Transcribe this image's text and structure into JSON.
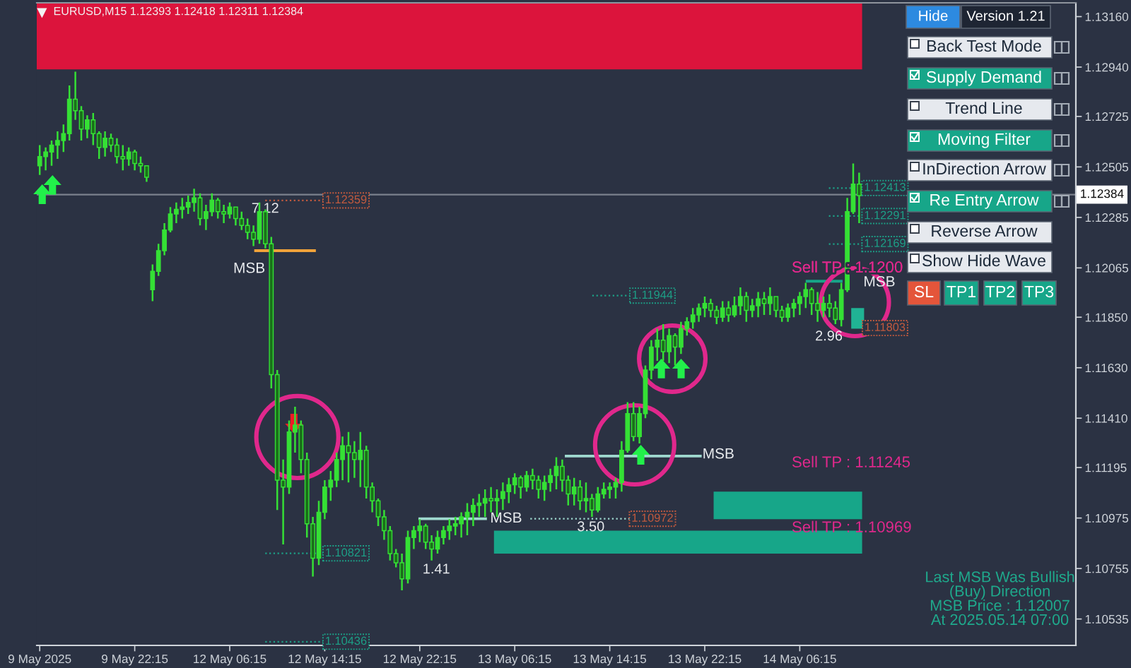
{
  "chart_data": {
    "type": "candlestick",
    "title": "EURUSD,M15 1.12393 1.12418 1.12311 1.12384",
    "categories": [
      "9 May 2025",
      null,
      null,
      null,
      null,
      null,
      null,
      null,
      null,
      null,
      null,
      null,
      null,
      null,
      null,
      null,
      "9 May 22:15",
      null,
      null,
      null,
      null,
      null,
      null,
      null,
      null,
      null,
      null,
      null,
      null,
      null,
      null,
      null,
      "12 May 06:15",
      null,
      null,
      null,
      null,
      null,
      null,
      null,
      null,
      null,
      null,
      null,
      null,
      null,
      null,
      null,
      "12 May 14:15",
      null,
      null,
      null,
      null,
      null,
      null,
      null,
      null,
      null,
      null,
      null,
      null,
      null,
      null,
      null,
      "12 May 22:15",
      null,
      null,
      null,
      null,
      null,
      null,
      null,
      null,
      null,
      null,
      null,
      null,
      null,
      null,
      null,
      "13 May 06:15",
      null,
      null,
      null,
      null,
      null,
      null,
      null,
      null,
      null,
      null,
      null,
      null,
      null,
      null,
      null,
      "13 May 14:15",
      null,
      null,
      null,
      null,
      null,
      null,
      null,
      null,
      null,
      null,
      null,
      null,
      null,
      null,
      null,
      "13 May 22:15",
      null,
      null,
      null,
      null,
      null,
      null,
      null,
      null,
      null,
      null,
      null,
      null,
      null,
      null,
      null,
      "14 May 06:15",
      null,
      null,
      null,
      null,
      null,
      null,
      null,
      null,
      null,
      null,
      null,
      null,
      null,
      null,
      null,
      null,
      null,
      null,
      null,
      null,
      null,
      null,
      null,
      null,
      null,
      null,
      null,
      null,
      null,
      null,
      null,
      null,
      null,
      null,
      null,
      null,
      null,
      null,
      null,
      null,
      null,
      null,
      null,
      null,
      null,
      null
    ],
    "color": "#35e035",
    "ohlc": [
      [
        1.1251,
        1.126,
        1.1247,
        1.1255
      ],
      [
        1.1255,
        1.1259,
        1.1249,
        1.1257
      ],
      [
        1.1257,
        1.1262,
        1.1251,
        1.126
      ],
      [
        1.126,
        1.1266,
        1.1254,
        1.1262
      ],
      [
        1.1262,
        1.1269,
        1.1257,
        1.1265
      ],
      [
        1.1265,
        1.1286,
        1.1262,
        1.128
      ],
      [
        1.128,
        1.1292,
        1.1271,
        1.1275
      ],
      [
        1.1275,
        1.1277,
        1.1262,
        1.1267
      ],
      [
        1.1267,
        1.1273,
        1.1263,
        1.1271
      ],
      [
        1.1271,
        1.1274,
        1.126,
        1.1265
      ],
      [
        1.1265,
        1.1266,
        1.1254,
        1.1259
      ],
      [
        1.1259,
        1.1266,
        1.1255,
        1.1263
      ],
      [
        1.1263,
        1.1265,
        1.1257,
        1.126
      ],
      [
        1.126,
        1.1263,
        1.1252,
        1.1255
      ],
      [
        1.1255,
        1.126,
        1.1249,
        1.1254
      ],
      [
        1.1254,
        1.1259,
        1.1251,
        1.1257
      ],
      [
        1.1257,
        1.1258,
        1.1249,
        1.1252
      ],
      [
        1.1252,
        1.1255,
        1.1248,
        1.1251
      ],
      [
        1.1251,
        1.1251,
        1.1244,
        1.1246
      ],
      [
        1.1197,
        1.1208,
        1.1192,
        1.1205
      ],
      [
        1.1205,
        1.1217,
        1.1203,
        1.1214
      ],
      [
        1.1214,
        1.1226,
        1.1212,
        1.1223
      ],
      [
        1.1223,
        1.1233,
        1.1222,
        1.123
      ],
      [
        1.123,
        1.1235,
        1.1226,
        1.1232
      ],
      [
        1.1232,
        1.1237,
        1.1228,
        1.1233
      ],
      [
        1.1233,
        1.1238,
        1.123,
        1.1235
      ],
      [
        1.1235,
        1.1241,
        1.1231,
        1.1237
      ],
      [
        1.1237,
        1.1239,
        1.1225,
        1.1228
      ],
      [
        1.1228,
        1.1234,
        1.1223,
        1.1231
      ],
      [
        1.1231,
        1.1239,
        1.1229,
        1.1236
      ],
      [
        1.1236,
        1.1237,
        1.1228,
        1.1231
      ],
      [
        1.1231,
        1.1234,
        1.1226,
        1.123
      ],
      [
        1.123,
        1.1235,
        1.1228,
        1.1233
      ],
      [
        1.1233,
        1.1233,
        1.1225,
        1.1228
      ],
      [
        1.1228,
        1.1231,
        1.1223,
        1.1225
      ],
      [
        1.1225,
        1.1228,
        1.1219,
        1.1222
      ],
      [
        1.1222,
        1.1225,
        1.1216,
        1.1219
      ],
      [
        1.1219,
        1.1235,
        1.1217,
        1.1231
      ],
      [
        1.1231,
        1.1232,
        1.1215,
        1.1217
      ],
      [
        1.1217,
        1.122,
        1.1154,
        1.116
      ],
      [
        1.116,
        1.1162,
        1.1101,
        1.1114
      ],
      [
        1.1114,
        1.1123,
        1.1086,
        1.1111
      ],
      [
        1.1111,
        1.114,
        1.1108,
        1.1135
      ],
      [
        1.1135,
        1.1146,
        1.1126,
        1.1138
      ],
      [
        1.1138,
        1.114,
        1.1117,
        1.1123
      ],
      [
        1.1123,
        1.1126,
        1.1089,
        1.1095
      ],
      [
        1.1095,
        1.1098,
        1.1072,
        1.108
      ],
      [
        1.108,
        1.1105,
        1.1077,
        1.11
      ],
      [
        1.11,
        1.1114,
        1.1097,
        1.1111
      ],
      [
        1.1111,
        1.1118,
        1.1105,
        1.1114
      ],
      [
        1.1114,
        1.1126,
        1.1111,
        1.1123
      ],
      [
        1.1123,
        1.1133,
        1.1114,
        1.1129
      ],
      [
        1.1129,
        1.1135,
        1.1113,
        1.1126
      ],
      [
        1.1126,
        1.1131,
        1.1115,
        1.1123
      ],
      [
        1.1123,
        1.1135,
        1.1111,
        1.1127
      ],
      [
        1.1127,
        1.1129,
        1.1106,
        1.1111
      ],
      [
        1.1111,
        1.1113,
        1.11,
        1.1105
      ],
      [
        1.1105,
        1.1106,
        1.1094,
        1.1098
      ],
      [
        1.1098,
        1.1101,
        1.1088,
        1.1092
      ],
      [
        1.1092,
        1.1094,
        1.1079,
        1.1082
      ],
      [
        1.1082,
        1.1084,
        1.1076,
        1.1078
      ],
      [
        1.1078,
        1.1082,
        1.1066,
        1.1071
      ],
      [
        1.1071,
        1.1092,
        1.1069,
        1.1089
      ],
      [
        1.1089,
        1.1094,
        1.1084,
        1.1092
      ],
      [
        1.1092,
        1.1097,
        1.1087,
        1.1094
      ],
      [
        1.1094,
        1.1095,
        1.1084,
        1.1087
      ],
      [
        1.1087,
        1.109,
        1.1079,
        1.1084
      ],
      [
        1.1084,
        1.1092,
        1.1082,
        1.1089
      ],
      [
        1.1089,
        1.1094,
        1.1086,
        1.1092
      ],
      [
        1.1092,
        1.1097,
        1.1088,
        1.1094
      ],
      [
        1.1094,
        1.1098,
        1.109,
        1.1095
      ],
      [
        1.1095,
        1.11,
        1.1089,
        1.1098
      ],
      [
        1.1098,
        1.1104,
        1.109,
        1.11
      ],
      [
        1.11,
        1.1106,
        1.1094,
        1.1103
      ],
      [
        1.1103,
        1.1108,
        1.1098,
        1.1104
      ],
      [
        1.1104,
        1.111,
        1.1098,
        1.1106
      ],
      [
        1.1106,
        1.1111,
        1.11,
        1.1105
      ],
      [
        1.1105,
        1.111,
        1.1098,
        1.1106
      ],
      [
        1.1106,
        1.1113,
        1.1101,
        1.1109
      ],
      [
        1.1109,
        1.1115,
        1.1104,
        1.1112
      ],
      [
        1.1112,
        1.1117,
        1.1108,
        1.1115
      ],
      [
        1.1115,
        1.1116,
        1.1106,
        1.1111
      ],
      [
        1.1111,
        1.1118,
        1.1109,
        1.1116
      ],
      [
        1.1116,
        1.1119,
        1.111,
        1.1114
      ],
      [
        1.1114,
        1.1116,
        1.1106,
        1.111
      ],
      [
        1.111,
        1.1116,
        1.1105,
        1.1113
      ],
      [
        1.1113,
        1.1119,
        1.1109,
        1.1116
      ],
      [
        1.1116,
        1.1124,
        1.111,
        1.112
      ],
      [
        1.112,
        1.1123,
        1.1109,
        1.1114
      ],
      [
        1.1114,
        1.1116,
        1.1103,
        1.1108
      ],
      [
        1.1108,
        1.1115,
        1.1103,
        1.1111
      ],
      [
        1.1111,
        1.1114,
        1.1101,
        1.1105
      ],
      [
        1.1105,
        1.1113,
        1.11,
        1.1106
      ],
      [
        1.1106,
        1.1108,
        1.1098,
        1.1101
      ],
      [
        1.1101,
        1.1111,
        1.11,
        1.1108
      ],
      [
        1.1108,
        1.1113,
        1.1106,
        1.111
      ],
      [
        1.111,
        1.1113,
        1.1106,
        1.1111
      ],
      [
        1.1111,
        1.1115,
        1.1106,
        1.1113
      ],
      [
        1.1113,
        1.1131,
        1.1109,
        1.1127
      ],
      [
        1.1127,
        1.1148,
        1.1126,
        1.1143
      ],
      [
        1.1143,
        1.1148,
        1.1131,
        1.1133
      ],
      [
        1.1133,
        1.1146,
        1.113,
        1.1143
      ],
      [
        1.1143,
        1.1164,
        1.1141,
        1.1162
      ],
      [
        1.1162,
        1.1175,
        1.1158,
        1.1172
      ],
      [
        1.1172,
        1.118,
        1.1166,
        1.1175
      ],
      [
        1.1175,
        1.1182,
        1.1166,
        1.117
      ],
      [
        1.117,
        1.118,
        1.1165,
        1.1177
      ],
      [
        1.1177,
        1.1178,
        1.1164,
        1.1172
      ],
      [
        1.1172,
        1.1183,
        1.1169,
        1.118
      ],
      [
        1.118,
        1.1185,
        1.1177,
        1.1183
      ],
      [
        1.1183,
        1.1189,
        1.118,
        1.1186
      ],
      [
        1.1186,
        1.1191,
        1.1183,
        1.1189
      ],
      [
        1.1189,
        1.1194,
        1.1185,
        1.1191
      ],
      [
        1.1191,
        1.1193,
        1.1185,
        1.1188
      ],
      [
        1.1188,
        1.119,
        1.1182,
        1.1185
      ],
      [
        1.1185,
        1.1192,
        1.1183,
        1.1189
      ],
      [
        1.1189,
        1.1192,
        1.1183,
        1.1186
      ],
      [
        1.1186,
        1.1194,
        1.1185,
        1.119
      ],
      [
        1.119,
        1.1198,
        1.1186,
        1.1194
      ],
      [
        1.1194,
        1.1196,
        1.1183,
        1.1188
      ],
      [
        1.1188,
        1.1193,
        1.1185,
        1.119
      ],
      [
        1.119,
        1.1196,
        1.1185,
        1.1193
      ],
      [
        1.1193,
        1.1196,
        1.1186,
        1.1191
      ],
      [
        1.1191,
        1.1198,
        1.1186,
        1.1194
      ],
      [
        1.1194,
        1.1194,
        1.1185,
        1.1188
      ],
      [
        1.1188,
        1.119,
        1.1183,
        1.1185
      ],
      [
        1.1185,
        1.1191,
        1.1183,
        1.1189
      ],
      [
        1.1189,
        1.1193,
        1.1185,
        1.1191
      ],
      [
        1.1191,
        1.1196,
        1.1186,
        1.1194
      ],
      [
        1.1194,
        1.12,
        1.1189,
        1.1197
      ],
      [
        1.1197,
        1.1198,
        1.1186,
        1.1191
      ],
      [
        1.1191,
        1.1196,
        1.1183,
        1.1188
      ],
      [
        1.1188,
        1.1194,
        1.1185,
        1.1191
      ],
      [
        1.1191,
        1.1195,
        1.1185,
        1.1189
      ],
      [
        1.1189,
        1.1192,
        1.1182,
        1.1184
      ],
      [
        1.1184,
        1.12,
        1.1181,
        1.1197
      ],
      [
        1.1197,
        1.1237,
        1.1196,
        1.1231
      ],
      [
        1.1231,
        1.1252,
        1.123,
        1.1243
      ],
      [
        1.1243,
        1.1248,
        1.1226,
        1.1238
      ],
      null,
      null,
      null,
      null,
      null,
      null,
      null,
      null,
      null,
      null,
      null,
      null,
      null,
      null,
      null,
      null,
      null,
      null,
      null,
      null,
      null,
      null,
      null,
      null,
      null,
      null,
      null,
      null,
      null,
      null,
      null,
      null,
      null,
      null,
      null,
      null
    ],
    "bands": [
      {
        "axis": "y",
        "from": 1.1293,
        "to": 1.1322,
        "color": "#dc143c"
      },
      {
        "axis": "y",
        "from": 1.1082,
        "to": 1.1092,
        "color": "#17a689"
      },
      {
        "axis": "y",
        "from": 1.1097,
        "to": 1.1109,
        "color": "#17a689"
      }
    ],
    "ylim": [
      1.1042,
      1.1322
    ],
    "yticks": [
      {
        "value": 1.1316,
        "label": "1.13160"
      },
      {
        "value": 1.1294,
        "label": "1.12940"
      },
      1.12725,
      1.12505,
      1.12285,
      1.12065,
      {
        "value": 1.1185,
        "label": "1.11850"
      },
      {
        "value": 1.1163,
        "label": "1.11630"
      },
      {
        "value": 1.1141,
        "label": "1.11410"
      },
      1.11195,
      1.10975,
      1.10755,
      1.10535
    ],
    "ref_lines": [
      {
        "axis": "y",
        "value": 1.12384,
        "label": "1.12384",
        "color": "#7b818d"
      },
      {
        "axis": "y",
        "value": 1.1214,
        "label": "MSB",
        "color": "#f0a23a"
      },
      {
        "axis": "y",
        "value": 1.10972,
        "label": "MSB",
        "color": "#9fd9cf"
      },
      {
        "axis": "y",
        "value": 1.11245,
        "label": "MSB",
        "color": "#9fd9cf"
      },
      {
        "axis": "y",
        "value": 1.12007,
        "label": "MSB",
        "color": "#17a689"
      }
    ],
    "annotations": [
      "7.12",
      "1.41",
      "3.50",
      "2.96",
      "Sell TP : 1.1200",
      "Sell TP : 1.11245",
      "Sell TP : 1.10969",
      {
        "text": "1.12359",
        "y": 1.12359
      },
      {
        "text": "1.10821",
        "y": 1.10821
      },
      {
        "text": "1.10436",
        "y": 1.10436
      },
      {
        "text": "1.11944",
        "y": 1.11944
      },
      {
        "text": "1.10972",
        "y": 1.10972
      },
      {
        "text": "1.12413",
        "y": 1.12413
      },
      {
        "text": "1.12291",
        "y": 1.12291
      },
      {
        "text": "1.12169",
        "y": 1.12169
      },
      {
        "text": "1.11803",
        "y": 1.11803
      },
      "Last MSB Was Bullish\n(Buy) Direction\nMSB Price : 1.12007\nAt 2025.05.14 07:00",
      "Hide",
      "Version 1.21",
      "Back Test Mode",
      "Supply Demand",
      "Trend Line",
      "Moving Filter",
      "InDirection Arrow",
      "Re Entry Arrow",
      "Reverse Arrow",
      "Show Hide Wave",
      "SL",
      "TP1",
      "TP2",
      "TP3"
    ]
  }
}
